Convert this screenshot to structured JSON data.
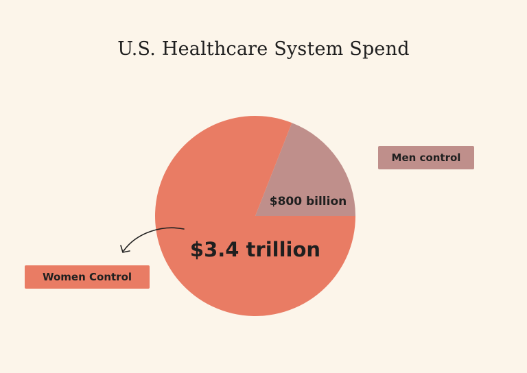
{
  "chart_data": {
    "type": "pie",
    "title": "U.S. Healthcare System Spend",
    "slices": [
      {
        "label": "Men control",
        "value": 800,
        "value_label": "$800 billion",
        "color": "#bf8f8b"
      },
      {
        "label": "Women Control",
        "value": 3400,
        "value_label": "$3.4 trillion",
        "color": "#e97c64"
      }
    ],
    "unit": "billion USD",
    "legend": "labels beside chart"
  },
  "colors": {
    "background": "#fcf5ea",
    "men": "#bf8f8b",
    "women": "#e97c64",
    "text": "#1f1f1f"
  }
}
